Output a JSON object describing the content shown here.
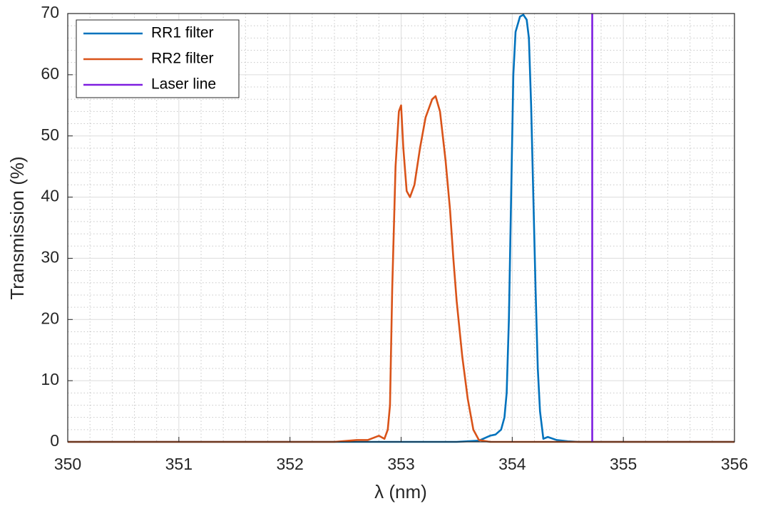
{
  "chart_data": {
    "type": "line",
    "x_label": "λ (nm)",
    "y_label": "Transmission (%)",
    "xlim": [
      350,
      356
    ],
    "ylim": [
      0,
      70
    ],
    "xticks": [
      350,
      351,
      352,
      353,
      354,
      355,
      356
    ],
    "yticks": [
      0,
      10,
      20,
      30,
      40,
      50,
      60,
      70
    ],
    "grid": true,
    "minor_grid": true,
    "legend": "upper-left",
    "series": [
      {
        "name": "RR1 filter",
        "color": "#0072bd",
        "x": [
          350,
          352.5,
          353.5,
          353.7,
          353.8,
          353.85,
          353.9,
          353.93,
          353.95,
          353.97,
          353.99,
          354.01,
          354.03,
          354.07,
          354.1,
          354.13,
          354.15,
          354.17,
          354.19,
          354.21,
          354.23,
          354.25,
          354.28,
          354.32,
          354.4,
          354.5,
          354.6,
          356
        ],
        "values": [
          0,
          0,
          0,
          0.2,
          1,
          1.2,
          2,
          4,
          8,
          20,
          40,
          60,
          67,
          69.5,
          69.8,
          69,
          66,
          55,
          40,
          25,
          12,
          5,
          0.5,
          0.8,
          0.3,
          0.1,
          0,
          0
        ]
      },
      {
        "name": "RR2 filter",
        "color": "#d95319",
        "x": [
          350,
          352.4,
          352.6,
          352.7,
          352.8,
          352.85,
          352.88,
          352.9,
          352.92,
          352.95,
          352.98,
          353.0,
          353.02,
          353.05,
          353.08,
          353.12,
          353.17,
          353.22,
          353.28,
          353.31,
          353.35,
          353.4,
          353.44,
          353.47,
          353.5,
          353.55,
          353.6,
          353.65,
          353.7,
          353.8,
          356
        ],
        "values": [
          0,
          0,
          0.3,
          0.3,
          1,
          0.5,
          2,
          6,
          25,
          45,
          54,
          55,
          48,
          41,
          40,
          42,
          48,
          53,
          56,
          56.5,
          54,
          46,
          38,
          30,
          23,
          14,
          7,
          2,
          0.3,
          0,
          0
        ]
      },
      {
        "name": "Laser line",
        "color": "#7e1ee0",
        "x": [
          354.72,
          354.72
        ],
        "values": [
          0,
          70
        ]
      }
    ]
  }
}
